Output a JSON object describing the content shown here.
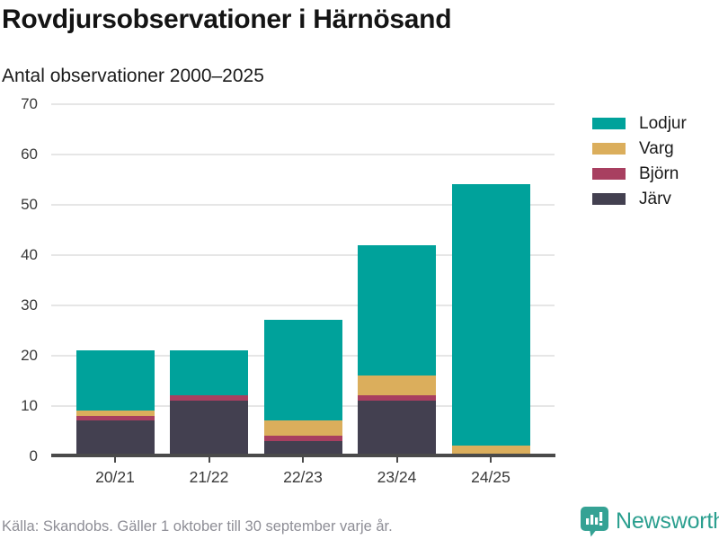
{
  "header": {
    "title": "Rovdjursobservationer i Härnösand",
    "subtitle": "Antal observationer 2000–2025"
  },
  "chart_data": {
    "type": "bar",
    "stacked": true,
    "title": "Rovdjursobservationer i Härnösand",
    "subtitle": "Antal observationer 2000–2025",
    "categories": [
      "20/21",
      "21/22",
      "22/23",
      "23/24",
      "24/25"
    ],
    "series": [
      {
        "name": "Järv",
        "color": "#434050",
        "values": [
          7,
          11,
          3,
          11,
          0
        ]
      },
      {
        "name": "Björn",
        "color": "#a83f60",
        "values": [
          1,
          1,
          1,
          1,
          0
        ]
      },
      {
        "name": "Varg",
        "color": "#dbae5c",
        "values": [
          1,
          0,
          3,
          4,
          2
        ]
      },
      {
        "name": "Lodjur",
        "color": "#00a29b",
        "values": [
          12,
          9,
          20,
          26,
          52
        ]
      }
    ],
    "totals": [
      21,
      21,
      27,
      42,
      54
    ],
    "ylabel": "Antal observationer",
    "xlabel": "",
    "ylim": [
      0,
      70
    ],
    "yticks": [
      0,
      10,
      20,
      30,
      40,
      50,
      60,
      70
    ],
    "grid": "horizontal",
    "legend_position": "right"
  },
  "legend": {
    "items": [
      {
        "label": "Lodjur",
        "color": "#00a29b"
      },
      {
        "label": "Varg",
        "color": "#dbae5c"
      },
      {
        "label": "Björn",
        "color": "#a83f60"
      },
      {
        "label": "Järv",
        "color": "#434050"
      }
    ]
  },
  "footer": {
    "source": "Källa: Skandobs. Gäller 1 oktober till 30 september varje år.",
    "brand": "Newsworthy"
  },
  "colors": {
    "accent_teal": "#00a29b",
    "gold": "#dbae5c",
    "berry": "#a83f60",
    "dark_slate": "#434050",
    "gridline": "#e6e6e6",
    "axis": "#4a4a4a",
    "brand_teal": "#2b9f8f",
    "source_text": "#8e8e96"
  }
}
